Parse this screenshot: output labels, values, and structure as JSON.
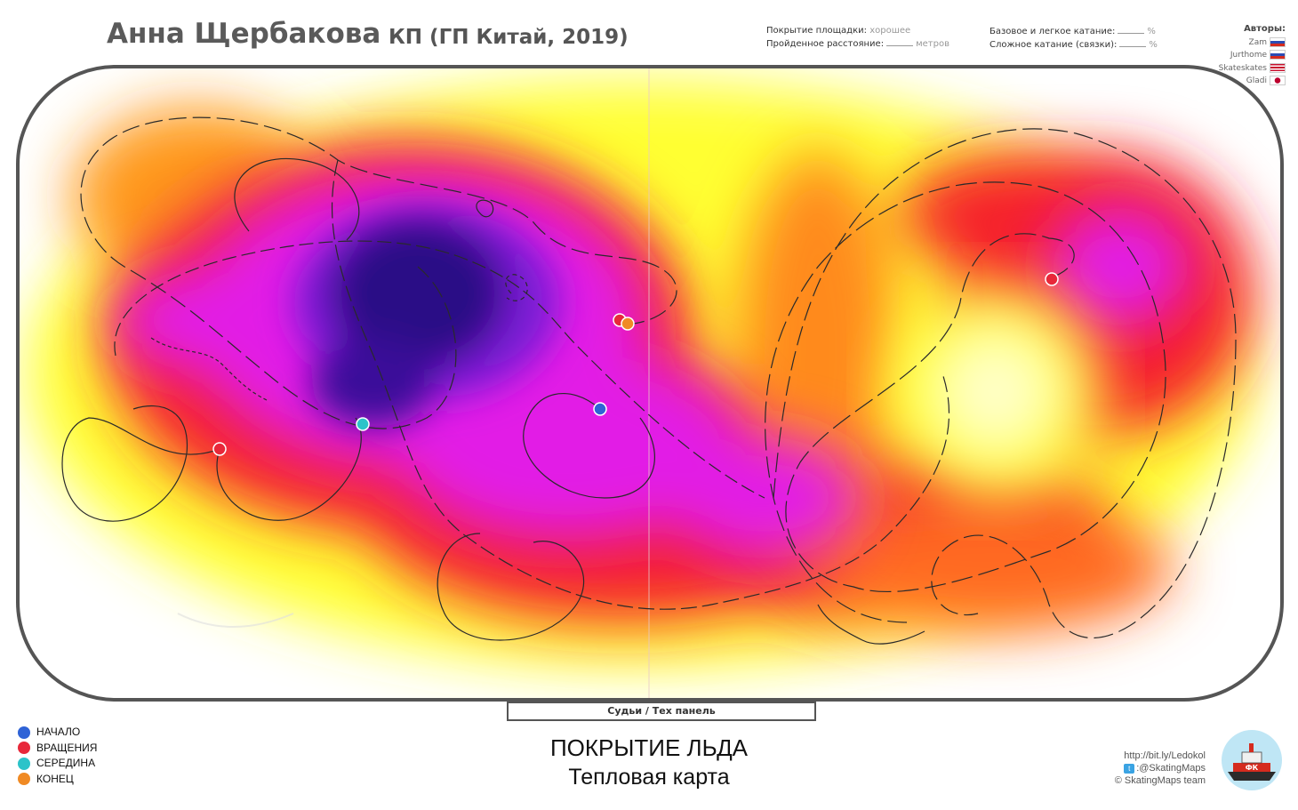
{
  "header": {
    "skater_name": "Анна Щербакова",
    "program": "КП (ГП Китай, 2019)"
  },
  "stats": {
    "coverage_label": "Покрытие площадки:",
    "coverage_value": "хорошее",
    "distance_label": "Пройденное расстояние:",
    "distance_unit": "метров",
    "basic_label": "Базовое и легкое катание:",
    "complex_label": "Сложное катание (связки):",
    "percent": "%"
  },
  "authors": {
    "heading": "Авторы:",
    "list": [
      {
        "name": "Zam",
        "flag": "ru"
      },
      {
        "name": "Jurthome",
        "flag": "ru"
      },
      {
        "name": "Skateskates",
        "flag": "us"
      },
      {
        "name": "Gladi",
        "flag": "jp"
      }
    ]
  },
  "judges_label": "Судьи / Тех панель",
  "caption": {
    "line1": "ПОКРЫТИЕ ЛЬДА",
    "line2": "Тепловая карта"
  },
  "legend": [
    {
      "label": "НАЧАЛО",
      "color": "#2f63d6"
    },
    {
      "label": "ВРАЩЕНИЯ",
      "color": "#e8283a"
    },
    {
      "label": "СЕРЕДИНА",
      "color": "#2cc3c9"
    },
    {
      "label": "КОНЕЦ",
      "color": "#f08a24"
    }
  ],
  "credits": {
    "link": "http://bit.ly/Ledokol",
    "twitter": ":@SkatingMaps",
    "team": "© SkatingMaps team"
  },
  "logo_text": "ФК",
  "colors": {
    "heat_low": "#ffff33",
    "heat_mid": "#f5222a",
    "heat_high": "#e21ee6",
    "heat_peak": "#2b0a86",
    "rink_border": "#555555"
  }
}
